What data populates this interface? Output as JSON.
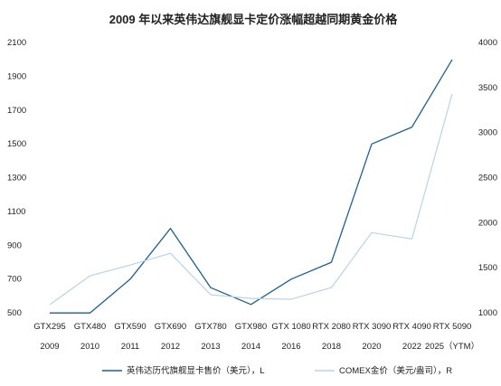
{
  "chart_data": {
    "type": "line",
    "title": "2009 年以来英伟达旗舰显卡定价涨幅超越同期黄金价格",
    "categories": [
      "GTX295",
      "GTX480",
      "GTX590",
      "GTX690",
      "GTX780",
      "GTX980",
      "GTX 1080",
      "RTX 2080",
      "RTX 3090",
      "RTX 4090",
      "RTX 5090"
    ],
    "years": [
      "2009",
      "2010",
      "2011",
      "2012",
      "2013",
      "2014",
      "2016",
      "2018",
      "2020",
      "2022",
      "2025（YTM）"
    ],
    "y_left": {
      "min": 500,
      "max": 2100,
      "ticks": [
        500,
        700,
        900,
        1100,
        1300,
        1500,
        1700,
        1900,
        2100
      ]
    },
    "y_right": {
      "min": 1000,
      "max": 4000,
      "ticks": [
        1000,
        1500,
        2000,
        2500,
        3000,
        3500,
        4000
      ]
    },
    "legend_position": "bottom",
    "series": [
      {
        "name": "英伟达历代旗舰显卡售价（美元），L",
        "axis": "left",
        "color": "#1f5f8b",
        "values": [
          499,
          499,
          699,
          999,
          649,
          549,
          699,
          799,
          1499,
          1599,
          1999
        ]
      },
      {
        "name": "COMEX金价（美元/盎司），R",
        "axis": "right",
        "color": "#bcd3e3",
        "values": [
          1090,
          1410,
          1530,
          1660,
          1200,
          1160,
          1150,
          1280,
          1890,
          1820,
          3430
        ]
      }
    ]
  }
}
